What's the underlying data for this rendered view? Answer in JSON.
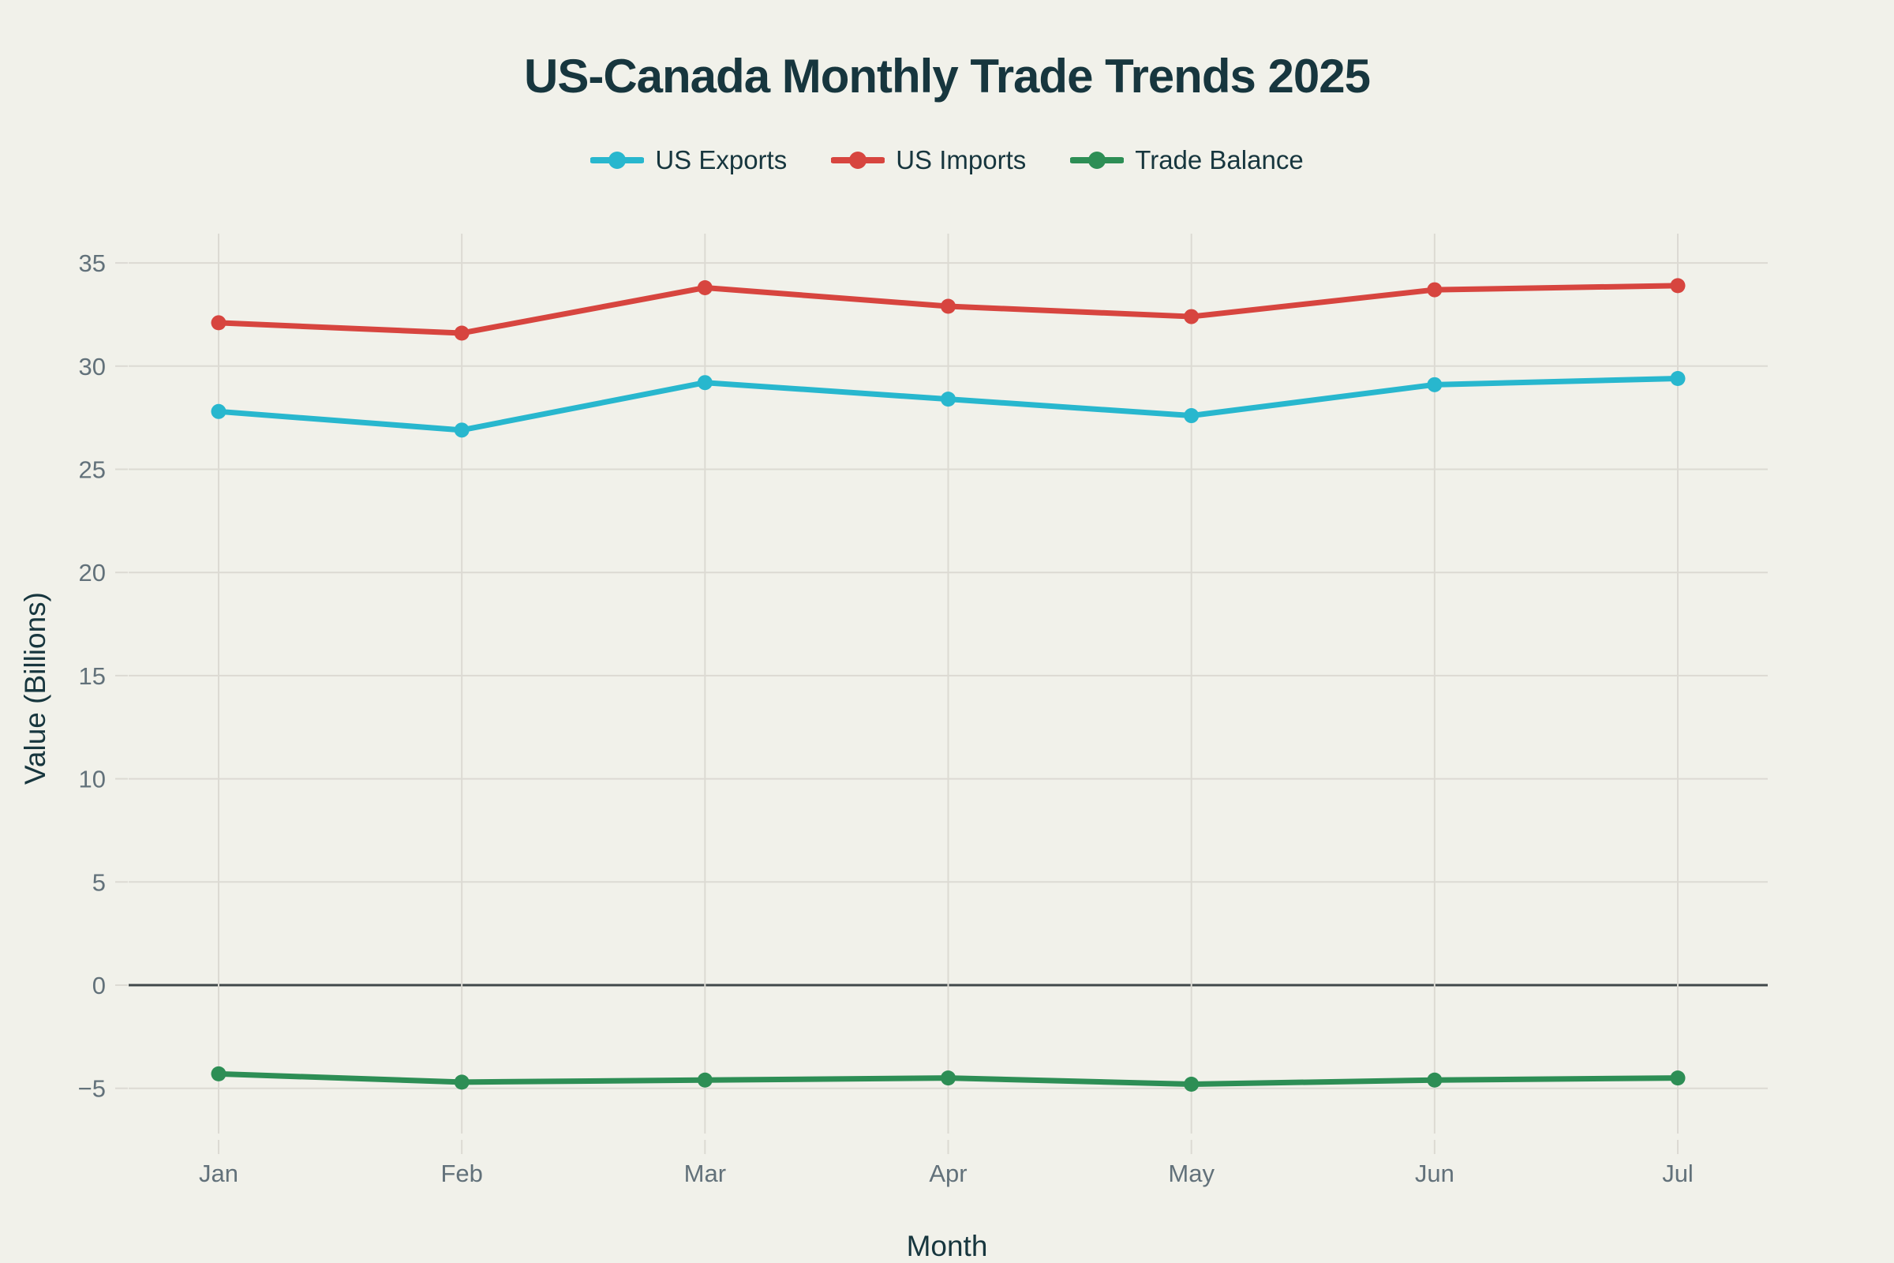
{
  "chart_data": {
    "type": "line",
    "title": "US-Canada Monthly Trade Trends 2025",
    "xlabel": "Month",
    "ylabel": "Value (Billions)",
    "categories": [
      "Jan",
      "Feb",
      "Mar",
      "Apr",
      "May",
      "Jun",
      "Jul"
    ],
    "series": [
      {
        "name": "US Exports",
        "color": "#28b7ce",
        "values": [
          27.8,
          26.9,
          29.2,
          28.4,
          27.6,
          29.1,
          29.4
        ]
      },
      {
        "name": "US Imports",
        "color": "#d7453f",
        "values": [
          32.1,
          31.6,
          33.8,
          32.9,
          32.4,
          33.7,
          33.9
        ]
      },
      {
        "name": "Trade Balance",
        "color": "#2d8e55",
        "values": [
          -4.3,
          -4.7,
          -4.6,
          -4.5,
          -4.8,
          -4.6,
          -4.5
        ]
      }
    ],
    "yticks": [
      35,
      30,
      25,
      20,
      15,
      10,
      5,
      0,
      -5
    ],
    "ylim": [
      -7.5,
      37.5
    ],
    "grid": true,
    "zeroline": true,
    "legend_position": "top"
  },
  "style": {
    "background_color": "#f1f1ea",
    "grid_color": "#dcdad3",
    "zero_line_color": "#40484a",
    "tick_label_color": "#62717a",
    "text_color": "#17363e"
  }
}
